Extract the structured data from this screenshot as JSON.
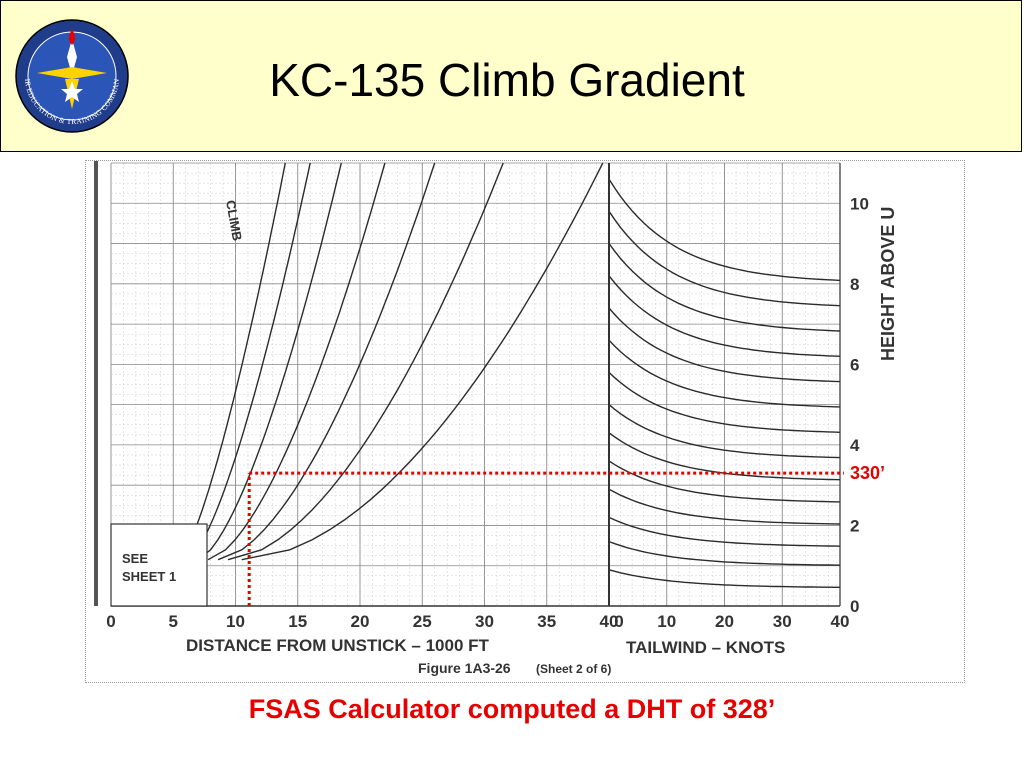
{
  "slide": {
    "title": "KC-135 Climb Gradient",
    "caption": "FSAS Calculator computed a DHT of 328’",
    "accent_color": "#e60000",
    "header_bg": "#ffffcc"
  },
  "seal": {
    "icon": "aetc-seal-icon",
    "ring_text": "AIR EDUCATION & TRAINING COMMAND"
  },
  "chart_data": {
    "type": "line",
    "figure_label": "Figure 1A3-26",
    "sheet_label": "(Sheet 2 of 6)",
    "see_sheet_label": [
      "SEE",
      "SHEET 1"
    ],
    "climb_label": "CLIMB",
    "left_panel": {
      "xlabel": "DISTANCE FROM UNSTICK – 1000 FT",
      "x_ticks": [
        0,
        5,
        10,
        15,
        20,
        25,
        30,
        35,
        40
      ],
      "xlim": [
        0,
        40
      ]
    },
    "right_panel": {
      "xlabel": "TAILWIND – KNOTS",
      "x_ticks": [
        0,
        10,
        20,
        30,
        40
      ],
      "xlim": [
        0,
        40
      ]
    },
    "y_axis": {
      "label": "HEIGHT ABOVE U",
      "ticks": [
        0,
        2,
        4,
        6,
        8,
        10
      ],
      "ylim": [
        0,
        11
      ]
    },
    "climb_curves": [
      {
        "x_start": 5.5,
        "x_end": 14
      },
      {
        "x_start": 6.2,
        "x_end": 16
      },
      {
        "x_start": 7,
        "x_end": 18.5
      },
      {
        "x_start": 7.8,
        "x_end": 22
      },
      {
        "x_start": 8.6,
        "x_end": 26
      },
      {
        "x_start": 9.4,
        "x_end": 31.5
      },
      {
        "x_start": 10.5,
        "x_end": 39.5
      }
    ],
    "tailwind_curves": [
      0.9,
      1.6,
      2.2,
      2.9,
      3.6,
      4.3,
      5.0,
      5.8,
      6.6,
      7.4,
      8.2,
      9.0,
      9.8,
      10.6
    ],
    "reading": {
      "label": "330’",
      "distance_kft": 11.1,
      "height": 3.3,
      "color": "#e60000"
    }
  }
}
